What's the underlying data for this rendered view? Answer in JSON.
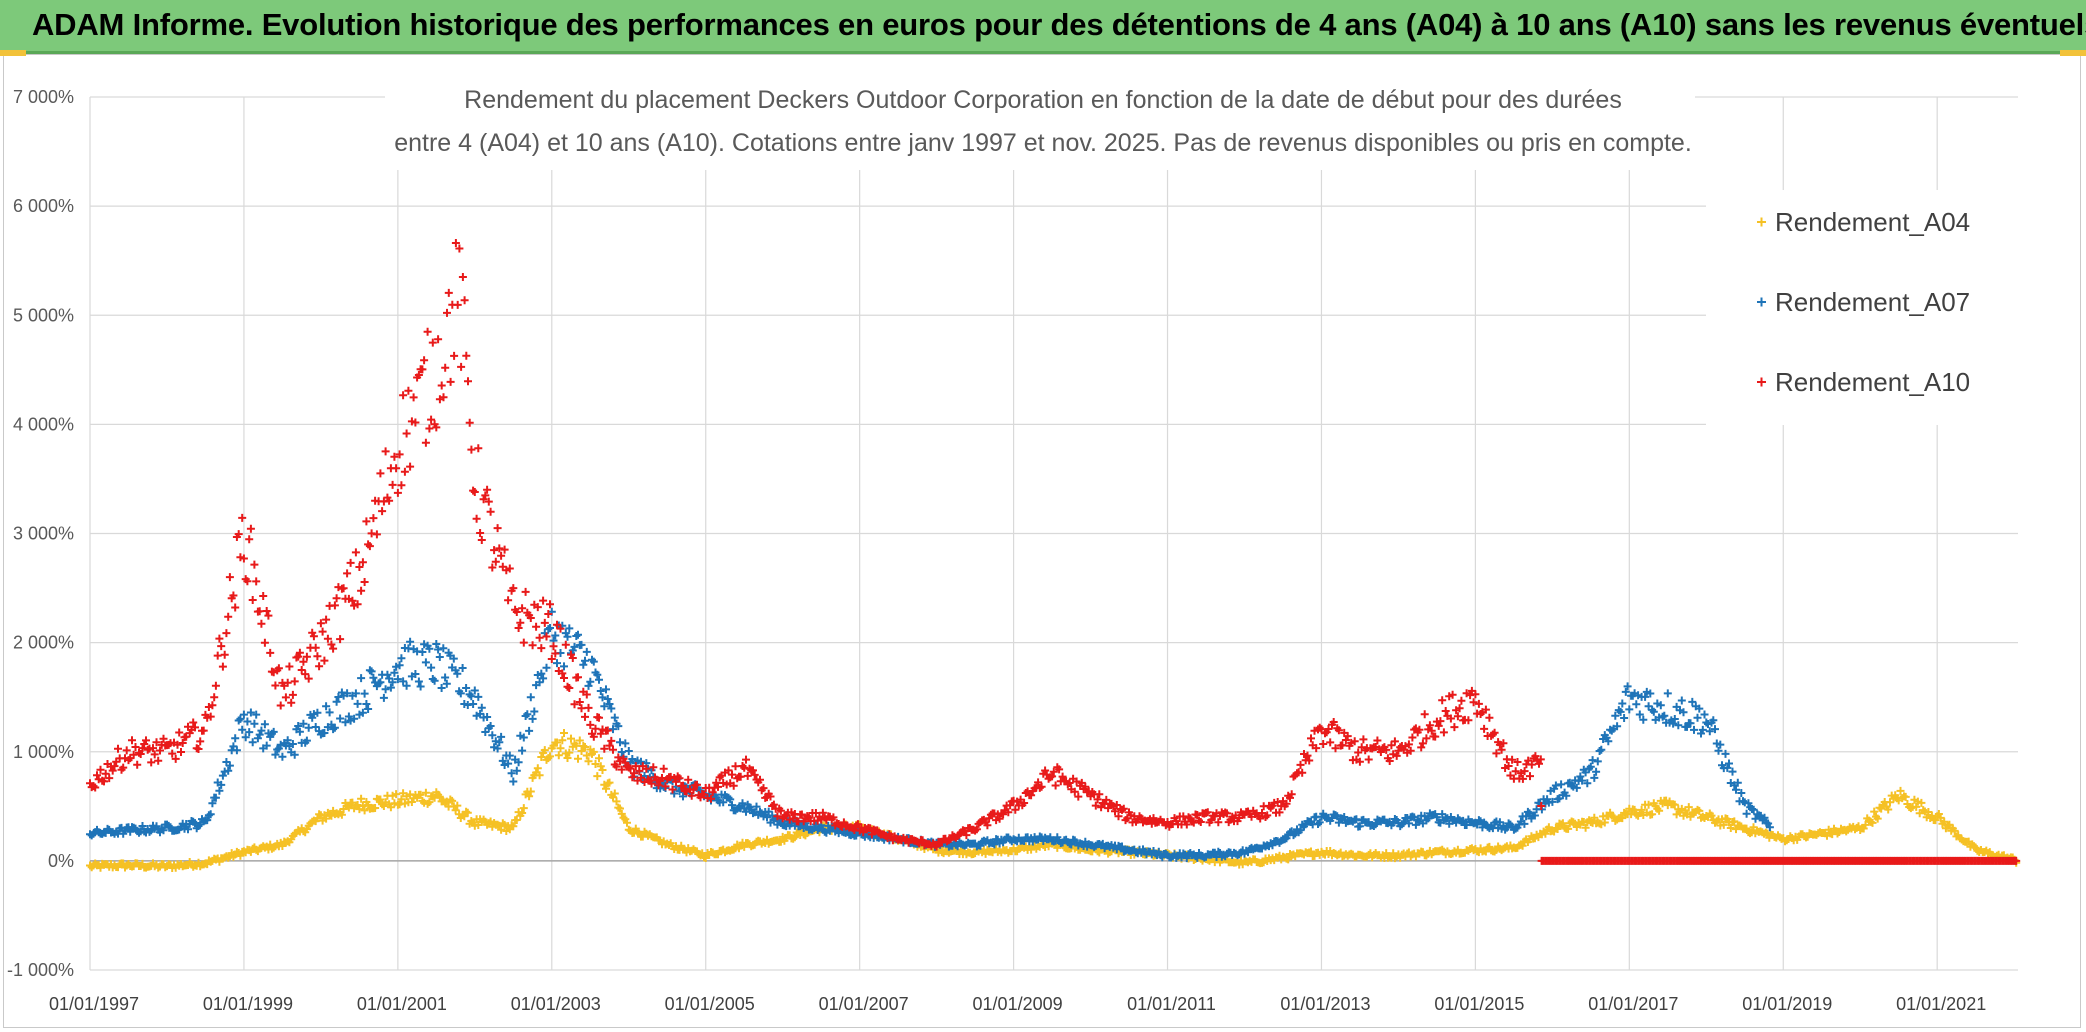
{
  "banner": {
    "title": "ADAM Informe. Evolution historique des performances en euros pour des détentions de 4 ans (A04) à 10 ans (A10) sans les revenus éventuels"
  },
  "colors": {
    "banner_bg": "#7dc97a",
    "A04": "#f5c125",
    "A07": "#1f74b8",
    "A10": "#e81a1a",
    "grid": "#d9d9d9",
    "zero_line": "#a6a6a6"
  },
  "chart_data": {
    "type": "scatter",
    "title_lines": [
      "Rendement du placement Deckers Outdoor Corporation en fonction de la date de début pour des durées",
      "entre 4 (A04) et 10 ans (A10). Cotations entre janv 1997 et nov. 2025. Pas de revenus disponibles ou pris en compte."
    ],
    "xlabel": "",
    "ylabel": "",
    "x_range": [
      1997.0,
      2022.05
    ],
    "ylim": [
      -1000,
      7000
    ],
    "y_ticks": [
      -1000,
      0,
      1000,
      2000,
      3000,
      4000,
      5000,
      6000,
      7000
    ],
    "y_tick_labels": [
      "-1 000%",
      "0%",
      "1 000%",
      "2 000%",
      "3 000%",
      "4 000%",
      "5 000%",
      "6 000%",
      "7 000%"
    ],
    "x_ticks": [
      1997,
      1999,
      2001,
      2003,
      2005,
      2007,
      2009,
      2011,
      2013,
      2015,
      2017,
      2019,
      2021
    ],
    "x_tick_labels": [
      "01/01/1997",
      "01/01/1999",
      "01/01/2001",
      "01/01/2003",
      "01/01/2005",
      "01/01/2007",
      "01/01/2009",
      "01/01/2011",
      "01/01/2013",
      "01/01/2015",
      "01/01/2017",
      "01/01/2019",
      "01/01/2021"
    ],
    "legend_position": "top-right",
    "marker": "+",
    "series": [
      {
        "name": "Rendement_A04",
        "color_key": "A04",
        "x": [
          1997.0,
          1997.5,
          1998.0,
          1998.5,
          1999.0,
          1999.5,
          2000.0,
          2000.5,
          2001.0,
          2001.5,
          2002.0,
          2002.5,
          2003.0,
          2003.5,
          2004.0,
          2004.5,
          2005.0,
          2005.5,
          2006.0,
          2006.5,
          2007.0,
          2007.5,
          2008.0,
          2008.5,
          2009.0,
          2009.5,
          2010.0,
          2010.5,
          2011.0,
          2011.5,
          2012.0,
          2012.5,
          2013.0,
          2013.5,
          2014.0,
          2014.5,
          2015.0,
          2015.5,
          2016.0,
          2016.5,
          2017.0,
          2017.5,
          2018.0,
          2018.5,
          2019.0,
          2019.5,
          2020.0,
          2020.5,
          2021.0,
          2021.5,
          2022.05
        ],
        "values": [
          -50,
          -40,
          -50,
          -20,
          80,
          150,
          400,
          520,
          550,
          600,
          350,
          300,
          1100,
          1000,
          300,
          150,
          50,
          150,
          200,
          300,
          300,
          200,
          100,
          80,
          100,
          150,
          100,
          80,
          50,
          20,
          -20,
          30,
          80,
          50,
          50,
          80,
          100,
          120,
          300,
          350,
          450,
          500,
          400,
          300,
          200,
          250,
          300,
          600,
          400,
          100,
          0
        ]
      },
      {
        "name": "Rendement_A07",
        "color_key": "A07",
        "x": [
          1997.0,
          1997.5,
          1998.0,
          1998.5,
          1999.0,
          1999.5,
          2000.0,
          2000.5,
          2001.0,
          2001.5,
          2002.0,
          2002.5,
          2003.0,
          2003.5,
          2004.0,
          2004.5,
          2005.0,
          2005.5,
          2006.0,
          2006.5,
          2007.0,
          2007.5,
          2008.0,
          2008.5,
          2009.0,
          2009.5,
          2010.0,
          2010.5,
          2011.0,
          2011.5,
          2012.0,
          2012.5,
          2013.0,
          2013.5,
          2014.0,
          2014.5,
          2015.0,
          2015.5,
          2016.0,
          2016.5,
          2017.0,
          2017.5,
          2018.0,
          2018.5,
          2018.85
        ],
        "values": [
          250,
          280,
          300,
          350,
          1300,
          1000,
          1300,
          1500,
          1800,
          1800,
          1500,
          800,
          2100,
          1800,
          900,
          700,
          600,
          500,
          350,
          300,
          250,
          200,
          150,
          150,
          200,
          200,
          150,
          100,
          50,
          50,
          80,
          200,
          400,
          350,
          350,
          400,
          350,
          300,
          600,
          800,
          1500,
          1400,
          1300,
          500,
          300
        ]
      },
      {
        "name": "Rendement_A10",
        "color_key": "A10",
        "x": [
          1997.0,
          1997.5,
          1998.0,
          1998.5,
          1999.0,
          1999.5,
          2000.0,
          2000.5,
          2001.0,
          2001.5,
          2001.8,
          2002.0,
          2002.5,
          2003.0,
          2003.5,
          2004.0,
          2004.5,
          2005.0,
          2005.5,
          2006.0,
          2006.5,
          2007.0,
          2007.5,
          2008.0,
          2008.5,
          2009.0,
          2009.5,
          2010.0,
          2010.5,
          2011.0,
          2011.5,
          2012.0,
          2012.5,
          2013.0,
          2013.5,
          2014.0,
          2014.5,
          2015.0,
          2015.5,
          2015.85,
          2015.86,
          2016.5,
          2017.0,
          2018.0,
          2019.0,
          2020.0,
          2021.0,
          2022.05
        ],
        "values": [
          700,
          1000,
          1000,
          1200,
          3000,
          1500,
          2000,
          2600,
          3800,
          4500,
          5200,
          3500,
          2300,
          2100,
          1300,
          800,
          750,
          600,
          850,
          400,
          400,
          300,
          200,
          150,
          300,
          500,
          800,
          600,
          400,
          350,
          400,
          400,
          500,
          1200,
          1000,
          1000,
          1300,
          1500,
          800,
          900,
          0,
          0,
          0,
          0,
          0,
          0,
          0,
          0
        ]
      }
    ]
  }
}
